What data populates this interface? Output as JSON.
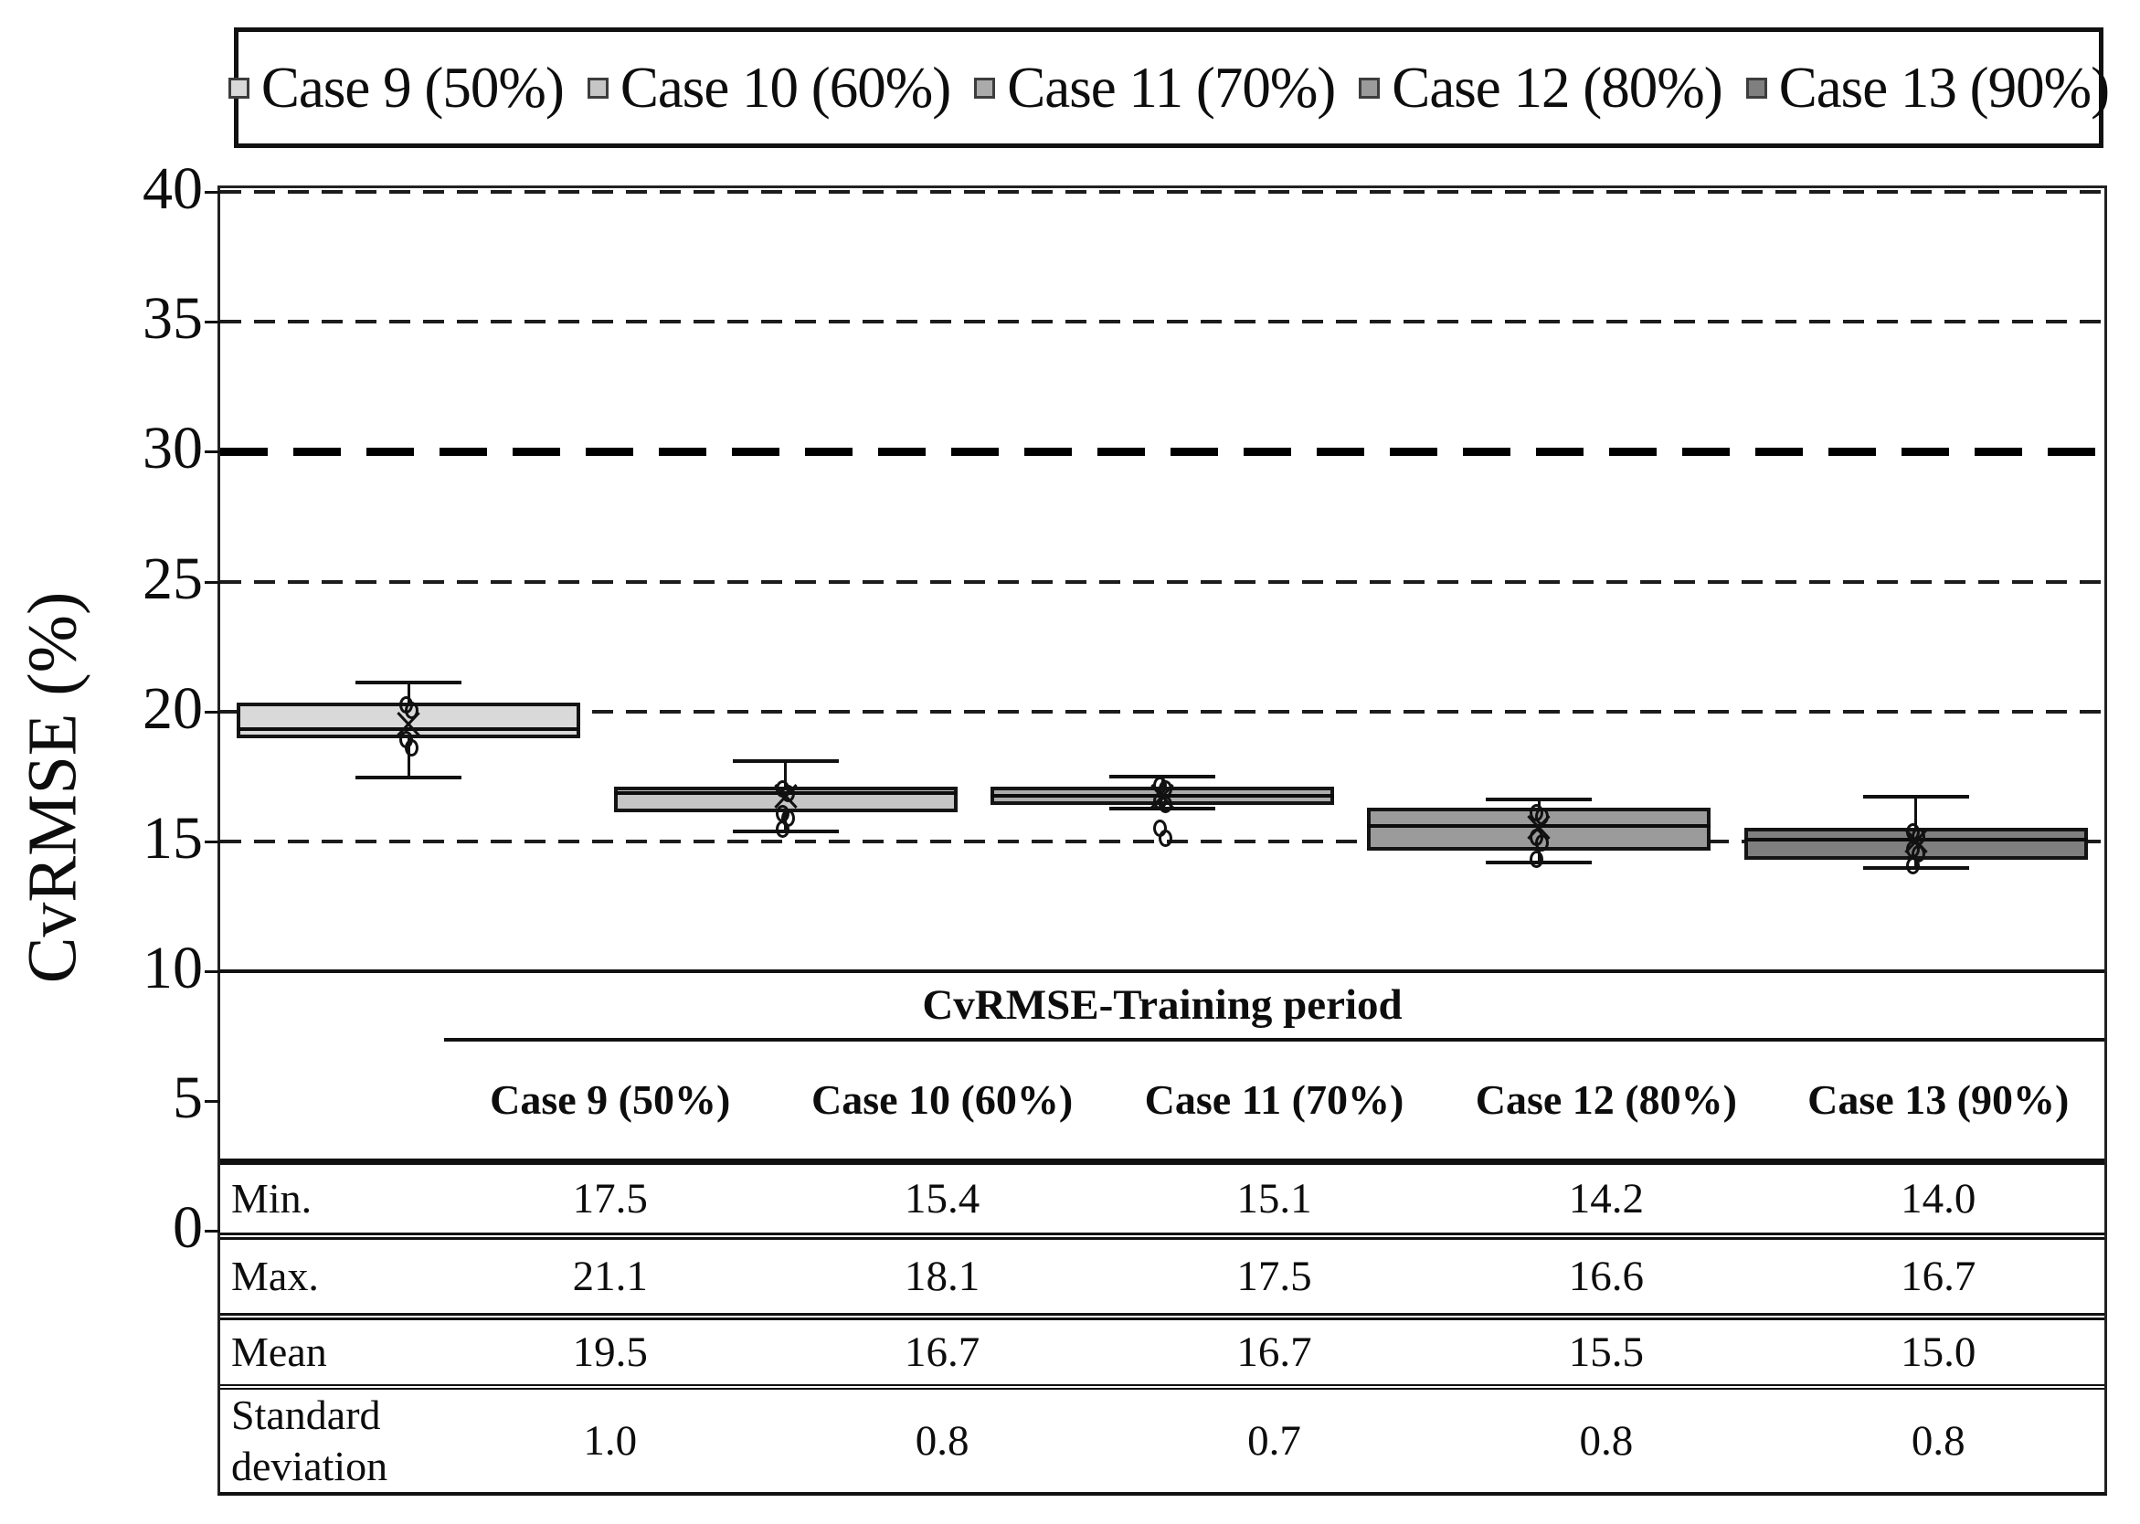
{
  "legend": {
    "items": [
      {
        "label": "Case 9 (50%)",
        "color": "#d9d9d9"
      },
      {
        "label": "Case 10 (60%)",
        "color": "#c6c6c6"
      },
      {
        "label": "Case 11 (70%)",
        "color": "#ababab"
      },
      {
        "label": "Case 12 (80%)",
        "color": "#9b9b9b"
      },
      {
        "label": "Case 13 (90%)",
        "color": "#7f7f7f"
      }
    ]
  },
  "chart_data": {
    "type": "boxplot",
    "title": "",
    "ylabel": "CvRMSE (%)",
    "ylim": [
      0,
      40
    ],
    "yticks": [
      0,
      5,
      10,
      15,
      20,
      25,
      30,
      35,
      40
    ],
    "gridlines": {
      "dashed_at": [
        40,
        35,
        25,
        20,
        15
      ],
      "thick_dashed_at": [
        30
      ],
      "solid_at": [
        10
      ],
      "note": "thick dashed line marks the 30% CvRMSE threshold"
    },
    "legend_position": "top",
    "categories": [
      "Case 9 (50%)",
      "Case 10 (60%)",
      "Case 11 (70%)",
      "Case 12 (80%)",
      "Case 13 (90%)"
    ],
    "series": [
      {
        "name": "Case 9 (50%)",
        "fill": "#d9d9d9",
        "whisker_low": 17.5,
        "q1": 18.95,
        "median": 19.3,
        "q3": 20.35,
        "whisker_high": 21.1,
        "mean": 19.5,
        "std": 1.0,
        "min": 17.5,
        "max": 21.1,
        "points": [
          20.25,
          20.05,
          18.9,
          18.6
        ],
        "outliers": []
      },
      {
        "name": "Case 10 (60%)",
        "fill": "#c6c6c6",
        "whisker_low": 15.4,
        "q1": 16.1,
        "median": 16.85,
        "q3": 17.1,
        "whisker_high": 18.1,
        "mean": 16.7,
        "std": 0.8,
        "min": 15.4,
        "max": 18.1,
        "points": [
          17.0,
          16.85,
          16.05,
          15.9,
          15.45
        ],
        "outliers": []
      },
      {
        "name": "Case 11 (70%)",
        "fill": "#ababab",
        "whisker_low": 16.3,
        "q1": 16.4,
        "median": 16.75,
        "q3": 17.1,
        "whisker_high": 17.5,
        "mean": 16.7,
        "std": 0.7,
        "min": 15.1,
        "max": 17.5,
        "points": [
          17.15,
          17.0,
          16.55,
          16.4
        ],
        "outliers": [
          15.5,
          15.1
        ]
      },
      {
        "name": "Case 12 (80%)",
        "fill": "#9b9b9b",
        "whisker_low": 14.2,
        "q1": 14.65,
        "median": 15.6,
        "q3": 16.3,
        "whisker_high": 16.6,
        "mean": 15.5,
        "std": 0.8,
        "min": 14.2,
        "max": 16.6,
        "points": [
          16.1,
          15.95,
          15.15,
          14.95,
          14.3
        ],
        "outliers": []
      },
      {
        "name": "Case 13 (90%)",
        "fill": "#7f7f7f",
        "whisker_low": 14.0,
        "q1": 14.3,
        "median": 15.05,
        "q3": 15.5,
        "whisker_high": 16.7,
        "mean": 15.0,
        "std": 0.8,
        "min": 14.0,
        "max": 16.7,
        "points": [
          15.35,
          15.2,
          14.7,
          14.5,
          14.05
        ],
        "outliers": []
      }
    ],
    "table": {
      "title": "CvRMSE-Training period",
      "columns": [
        "Case 9 (50%)",
        "Case 10 (60%)",
        "Case 11 (70%)",
        "Case 12 (80%)",
        "Case 13 (90%)"
      ],
      "rows": [
        {
          "label": "Min.",
          "values": [
            "17.5",
            "15.4",
            "15.1",
            "14.2",
            "14.0"
          ]
        },
        {
          "label": "Max.",
          "values": [
            "21.1",
            "18.1",
            "17.5",
            "16.6",
            "16.7"
          ]
        },
        {
          "label": "Mean",
          "values": [
            "19.5",
            "16.7",
            "16.7",
            "15.5",
            "15.0"
          ]
        },
        {
          "label": "Standard deviation",
          "values": [
            "1.0",
            "0.8",
            "0.7",
            "0.8",
            "0.8"
          ]
        }
      ]
    }
  }
}
